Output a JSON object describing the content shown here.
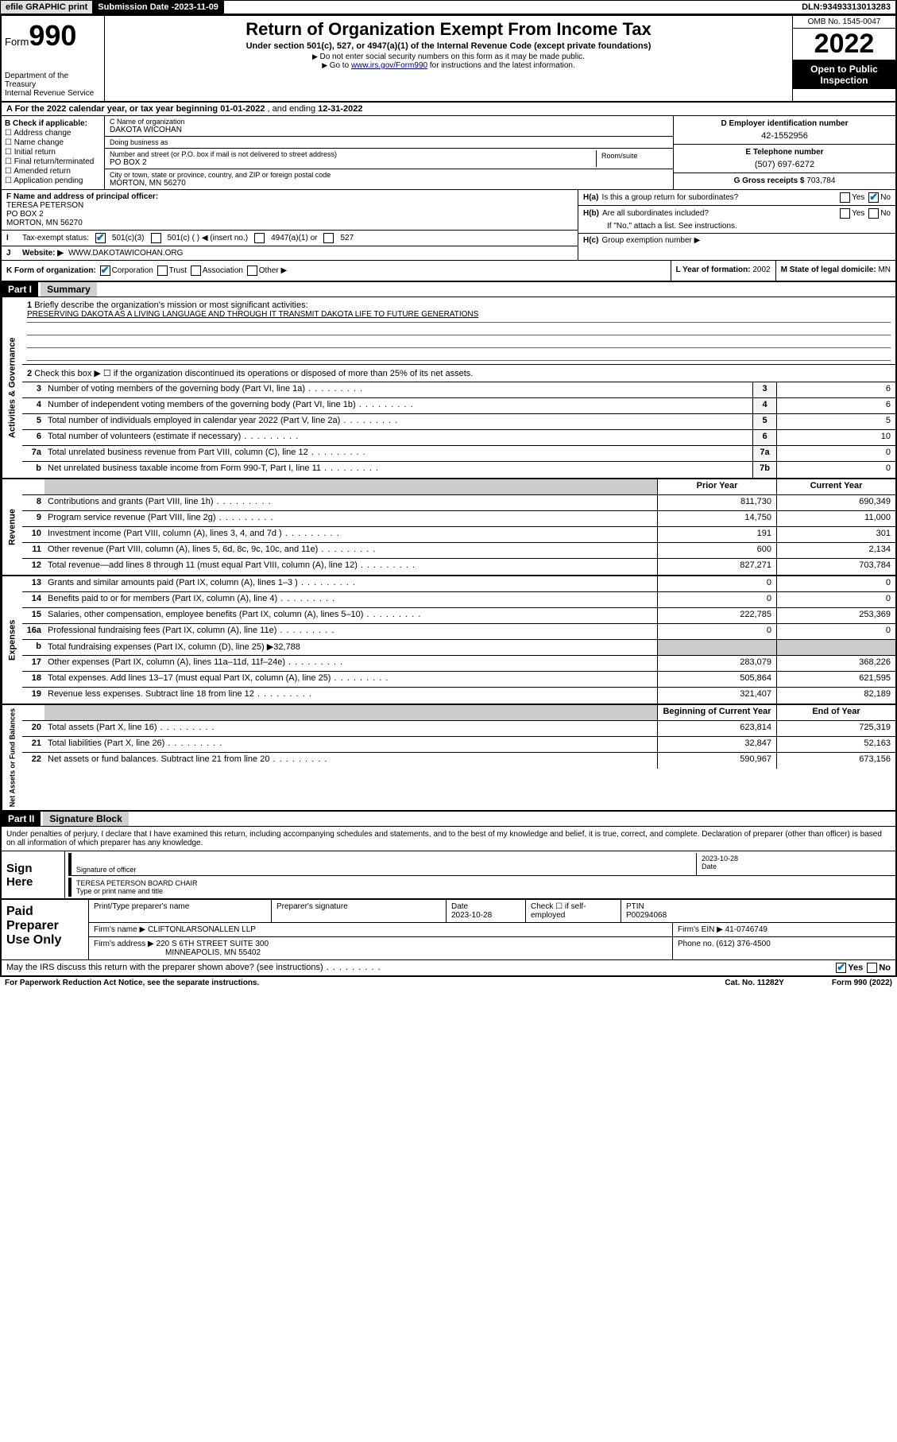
{
  "topbar": {
    "efile": "efile GRAPHIC print",
    "submission_label": "Submission Date - ",
    "submission_date": "2023-11-09",
    "dln_label": "DLN: ",
    "dln": "93493313013283"
  },
  "formhead": {
    "form_word": "Form",
    "form_num": "990",
    "dept": "Department of the Treasury\nInternal Revenue Service",
    "title": "Return of Organization Exempt From Income Tax",
    "subtitle": "Under section 501(c), 527, or 4947(a)(1) of the Internal Revenue Code (except private foundations)",
    "note1": "Do not enter social security numbers on this form as it may be made public.",
    "note2_pre": "Go to ",
    "note2_link": "www.irs.gov/Form990",
    "note2_post": " for instructions and the latest information.",
    "omb": "OMB No. 1545-0047",
    "year": "2022",
    "public": "Open to Public Inspection"
  },
  "taxyear": {
    "a_label": "A For the 2022 calendar year, or tax year beginning ",
    "begin": "01-01-2022",
    "mid": " , and ending ",
    "end": "12-31-2022"
  },
  "colB": {
    "label": "B Check if applicable:",
    "opts": [
      "Address change",
      "Name change",
      "Initial return",
      "Final return/terminated",
      "Amended return",
      "Application pending"
    ]
  },
  "colC": {
    "name_lab": "C Name of organization",
    "name": "DAKOTA WICOHAN",
    "dba_lab": "Doing business as",
    "dba": "",
    "addr_lab": "Number and street (or P.O. box if mail is not delivered to street address)",
    "suite_lab": "Room/suite",
    "addr": "PO BOX 2",
    "city_lab": "City or town, state or province, country, and ZIP or foreign postal code",
    "city": "MORTON, MN  56270"
  },
  "colD": {
    "ein_lab": "D Employer identification number",
    "ein": "42-1552956",
    "phone_lab": "E Telephone number",
    "phone": "(507) 697-6272",
    "gross_lab": "G Gross receipts $ ",
    "gross": "703,784"
  },
  "rowF": {
    "lab": "F Name and address of principal officer:",
    "name": "TERESA PETERSON",
    "addr1": "PO BOX 2",
    "addr2": "MORTON, MN  56270"
  },
  "rowI": {
    "lab": "Tax-exempt status:",
    "o1": "501(c)(3)",
    "o2": "501(c) (  ) ◀ (insert no.)",
    "o3": "4947(a)(1) or",
    "o4": "527"
  },
  "rowJ": {
    "lab": "Website: ▶",
    "val": "WWW.DAKOTAWICOHAN.ORG"
  },
  "rowH": {
    "a_lab": "H(a)",
    "a_txt": "Is this a group return for subordinates?",
    "b_lab": "H(b)",
    "b_txt": "Are all subordinates included?",
    "b_note": "If \"No,\" attach a list. See instructions.",
    "c_lab": "H(c)",
    "c_txt": "Group exemption number ▶",
    "yes": "Yes",
    "no": "No"
  },
  "rowK": {
    "lab": "K Form of organization:",
    "o1": "Corporation",
    "o2": "Trust",
    "o3": "Association",
    "o4": "Other ▶",
    "l_lab": "L Year of formation: ",
    "l_val": "2002",
    "m_lab": "M State of legal domicile: ",
    "m_val": "MN"
  },
  "part1": {
    "hdr": "Part I",
    "title": "Summary",
    "q1_lab": "1",
    "q1": "Briefly describe the organization's mission or most significant activities:",
    "q1_val": "PRESERVING DAKOTA AS A LIVING LANGUAGE AND THROUGH IT TRANSMIT DAKOTA LIFE TO FUTURE GENERATIONS",
    "q2_lab": "2",
    "q2": "Check this box ▶ ☐  if the organization discontinued its operations or disposed of more than 25% of its net assets.",
    "prior_hdr": "Prior Year",
    "curr_hdr": "Current Year",
    "begin_hdr": "Beginning of Current Year",
    "end_hdr": "End of Year",
    "gov_tab": "Activities & Governance",
    "rev_tab": "Revenue",
    "exp_tab": "Expenses",
    "net_tab": "Net Assets or Fund Balances",
    "gov_rows": [
      {
        "n": "3",
        "d": "Number of voting members of the governing body (Part VI, line 1a)",
        "box": "3",
        "v": "6"
      },
      {
        "n": "4",
        "d": "Number of independent voting members of the governing body (Part VI, line 1b)",
        "box": "4",
        "v": "6"
      },
      {
        "n": "5",
        "d": "Total number of individuals employed in calendar year 2022 (Part V, line 2a)",
        "box": "5",
        "v": "5"
      },
      {
        "n": "6",
        "d": "Total number of volunteers (estimate if necessary)",
        "box": "6",
        "v": "10"
      },
      {
        "n": "7a",
        "d": "Total unrelated business revenue from Part VIII, column (C), line 12",
        "box": "7a",
        "v": "0"
      },
      {
        "n": "b",
        "d": "Net unrelated business taxable income from Form 990-T, Part I, line 11",
        "box": "7b",
        "v": "0"
      }
    ],
    "rev_rows": [
      {
        "n": "8",
        "d": "Contributions and grants (Part VIII, line 1h)",
        "p": "811,730",
        "c": "690,349"
      },
      {
        "n": "9",
        "d": "Program service revenue (Part VIII, line 2g)",
        "p": "14,750",
        "c": "11,000"
      },
      {
        "n": "10",
        "d": "Investment income (Part VIII, column (A), lines 3, 4, and 7d )",
        "p": "191",
        "c": "301"
      },
      {
        "n": "11",
        "d": "Other revenue (Part VIII, column (A), lines 5, 6d, 8c, 9c, 10c, and 11e)",
        "p": "600",
        "c": "2,134"
      },
      {
        "n": "12",
        "d": "Total revenue—add lines 8 through 11 (must equal Part VIII, column (A), line 12)",
        "p": "827,271",
        "c": "703,784"
      }
    ],
    "exp_rows": [
      {
        "n": "13",
        "d": "Grants and similar amounts paid (Part IX, column (A), lines 1–3 )",
        "p": "0",
        "c": "0"
      },
      {
        "n": "14",
        "d": "Benefits paid to or for members (Part IX, column (A), line 4)",
        "p": "0",
        "c": "0"
      },
      {
        "n": "15",
        "d": "Salaries, other compensation, employee benefits (Part IX, column (A), lines 5–10)",
        "p": "222,785",
        "c": "253,369"
      },
      {
        "n": "16a",
        "d": "Professional fundraising fees (Part IX, column (A), line 11e)",
        "p": "0",
        "c": "0"
      },
      {
        "n": "b",
        "d": "Total fundraising expenses (Part IX, column (D), line 25) ▶32,788",
        "p": "",
        "c": "",
        "shade": true
      },
      {
        "n": "17",
        "d": "Other expenses (Part IX, column (A), lines 11a–11d, 11f–24e)",
        "p": "283,079",
        "c": "368,226"
      },
      {
        "n": "18",
        "d": "Total expenses. Add lines 13–17 (must equal Part IX, column (A), line 25)",
        "p": "505,864",
        "c": "621,595"
      },
      {
        "n": "19",
        "d": "Revenue less expenses. Subtract line 18 from line 12",
        "p": "321,407",
        "c": "82,189"
      }
    ],
    "net_rows": [
      {
        "n": "20",
        "d": "Total assets (Part X, line 16)",
        "p": "623,814",
        "c": "725,319"
      },
      {
        "n": "21",
        "d": "Total liabilities (Part X, line 26)",
        "p": "32,847",
        "c": "52,163"
      },
      {
        "n": "22",
        "d": "Net assets or fund balances. Subtract line 21 from line 20",
        "p": "590,967",
        "c": "673,156"
      }
    ]
  },
  "part2": {
    "hdr": "Part II",
    "title": "Signature Block",
    "penalty": "Under penalties of perjury, I declare that I have examined this return, including accompanying schedules and statements, and to the best of my knowledge and belief, it is true, correct, and complete. Declaration of preparer (other than officer) is based on all information of which preparer has any knowledge.",
    "sign_here": "Sign Here",
    "sig_officer_lab": "Signature of officer",
    "sig_date_lab": "Date",
    "sig_date": "2023-10-28",
    "sig_name": "TERESA PETERSON BOARD CHAIR",
    "sig_name_lab": "Type or print name and title",
    "paid_lab": "Paid Preparer Use Only",
    "prep_name_lab": "Print/Type preparer's name",
    "prep_sig_lab": "Preparer's signature",
    "prep_date_lab": "Date",
    "prep_date": "2023-10-28",
    "prep_self_lab": "Check ☐ if self-employed",
    "ptin_lab": "PTIN",
    "ptin": "P00294068",
    "firm_name_lab": "Firm's name   ▶",
    "firm_name": "CLIFTONLARSONALLEN LLP",
    "firm_ein_lab": "Firm's EIN ▶",
    "firm_ein": "41-0746749",
    "firm_addr_lab": "Firm's address ▶",
    "firm_addr": "220 S 6TH STREET SUITE 300",
    "firm_city": "MINNEAPOLIS, MN  55402",
    "firm_phone_lab": "Phone no. ",
    "firm_phone": "(612) 376-4500",
    "discuss": "May the IRS discuss this return with the preparer shown above? (see instructions)"
  },
  "footer": {
    "pra": "For Paperwork Reduction Act Notice, see the separate instructions.",
    "cat": "Cat. No. 11282Y",
    "form": "Form 990 (2022)"
  }
}
